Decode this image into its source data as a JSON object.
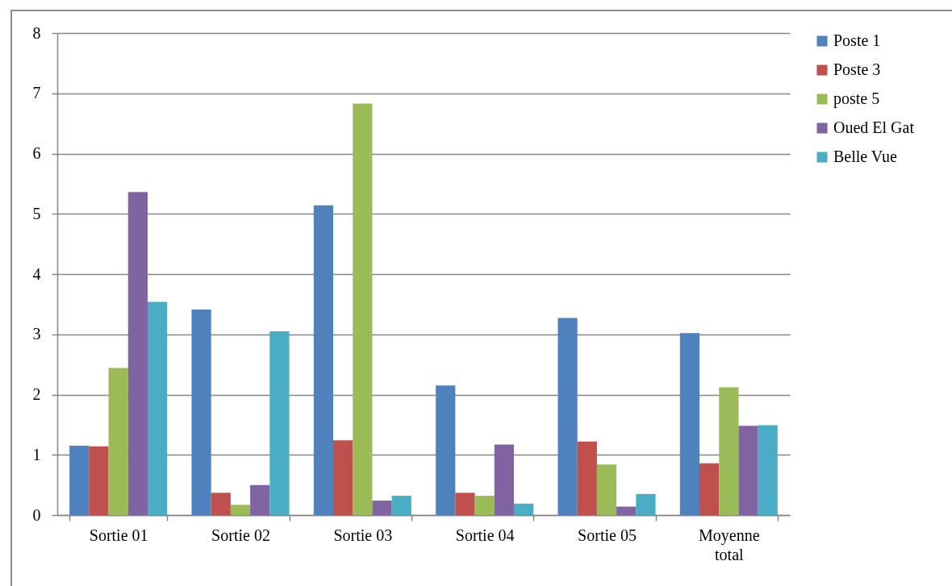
{
  "chart_data": {
    "type": "bar",
    "categories": [
      "Sortie 01",
      "Sortie 02",
      "Sortie 03",
      "Sortie 04",
      "Sortie 05",
      "Moyenne total"
    ],
    "series": [
      {
        "name": " Poste 1",
        "color": "#4f81bd",
        "values": [
          1.15,
          3.41,
          5.14,
          2.15,
          3.27,
          3.02
        ]
      },
      {
        "name": "Poste 3",
        "color": "#c0504d",
        "values": [
          1.14,
          0.37,
          1.24,
          0.37,
          1.22,
          0.86
        ]
      },
      {
        "name": "poste 5",
        "color": "#9bbb59",
        "values": [
          2.44,
          0.17,
          6.83,
          0.32,
          0.84,
          2.12
        ]
      },
      {
        "name": "Oued El Gat",
        "color": "#8064a2",
        "values": [
          5.36,
          0.5,
          0.24,
          1.17,
          0.14,
          1.48
        ]
      },
      {
        "name": "Belle Vue",
        "color": "#4bacc6",
        "values": [
          3.54,
          3.05,
          0.32,
          0.19,
          0.35,
          1.49
        ]
      }
    ],
    "ylim": [
      0,
      8
    ],
    "yticks": [
      0,
      1,
      2,
      3,
      4,
      5,
      6,
      7,
      8
    ],
    "grid": "y",
    "legend": "right"
  }
}
